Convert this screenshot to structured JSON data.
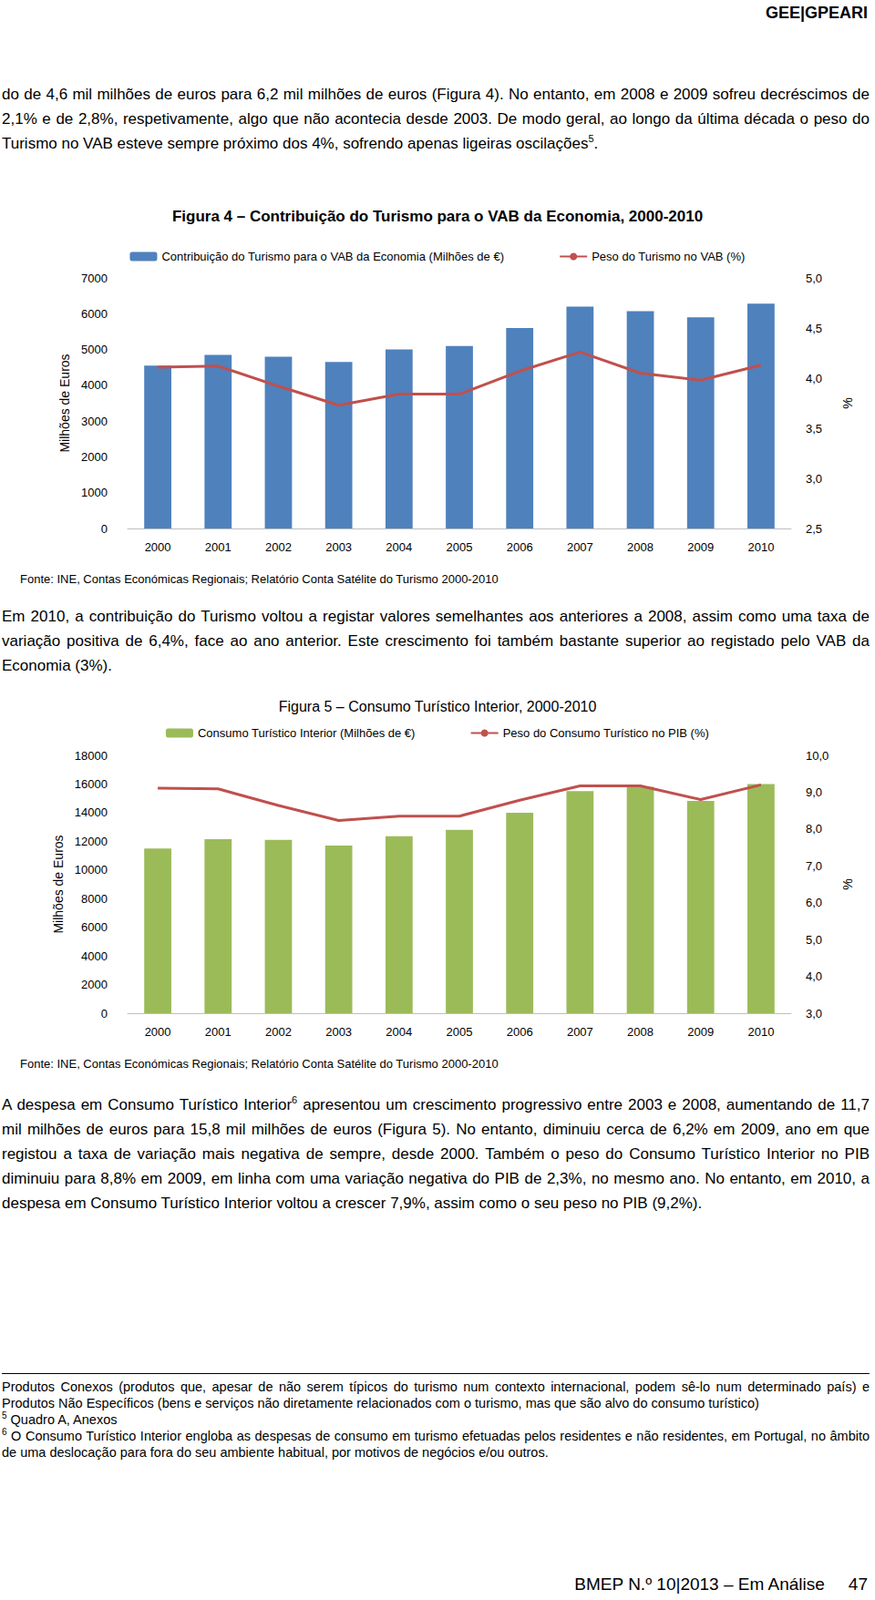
{
  "header": "GEE|GPEARI",
  "paragraphs": [
    [
      {
        "text": "do de 4,6 mil milhões de euros para 6,2 mil milhões de euros (Figura 4). No entanto, em 2008 e 2009 sofreu decréscimos de 2,1% e de 2,8%, respetivamente, algo que não acontecia desde 2003. De modo geral, ao longo da última década o peso do Turismo no VAB esteve sempre próximo dos 4%, sofrendo apenas ligeiras oscilações"
      },
      {
        "sup": "5"
      },
      {
        "text": "."
      }
    ],
    [
      {
        "text": "Em 2010, a contribuição do Turismo voltou a registar valores semelhantes aos anteriores a 2008, assim como uma taxa de variação positiva de 6,4%, face ao ano anterior. Este crescimento foi também bastante superior ao registado pelo VAB da Economia (3%)."
      }
    ],
    [
      {
        "text": "A despesa em Consumo Turístico Interior"
      },
      {
        "sup": "6"
      },
      {
        "text": " apresentou um crescimento progressivo entre 2003 e 2008, aumentando de 11,7 mil milhões de euros para 15,8 mil milhões de euros (Figura 5). No entanto, diminuiu cerca de 6,2% em 2009, ano em que registou a taxa de variação mais negativa de sempre, desde 2000. Também o peso do Consumo Turístico Interior no PIB diminuiu para 8,8% em 2009, em linha com uma variação negativa do PIB de 2,3%, no mesmo ano. No entanto, em 2010, a despesa em Consumo Turístico Interior voltou a crescer 7,9%, assim como o seu peso no PIB (9,2%)."
      }
    ]
  ],
  "chart_data": [
    {
      "type": "bar",
      "title": "Figura 4 – Contribuição do Turismo para o VAB da Economia, 2000-2010",
      "ylabel": "Milhões de Euros",
      "y2label": "%",
      "categories": [
        "2000",
        "2001",
        "2002",
        "2003",
        "2004",
        "2005",
        "2006",
        "2007",
        "2008",
        "2009",
        "2010"
      ],
      "series": [
        {
          "name": "Contribuição do Turismo para o VAB da Economia (Milhões de €)",
          "type": "bar",
          "color": "#4f81bd",
          "values": [
            4550,
            4850,
            4800,
            4650,
            5000,
            5100,
            5600,
            6200,
            6070,
            5900,
            6280
          ]
        },
        {
          "name": "Peso do Turismo no VAB (%)",
          "type": "line",
          "axis": "y2",
          "color": "#c0504d",
          "marker": "none",
          "line_style": "solid",
          "values": [
            4.11,
            4.12,
            3.92,
            3.73,
            3.84,
            3.84,
            4.07,
            4.26,
            4.05,
            3.98,
            4.13
          ]
        }
      ],
      "ylim": [
        0,
        7000
      ],
      "yticks": [
        0,
        1000,
        2000,
        3000,
        4000,
        5000,
        6000,
        7000
      ],
      "y2lim": [
        2.5,
        5.0
      ],
      "y2ticks": [
        {
          "value": 2.5,
          "label": "2,5"
        },
        {
          "value": 3.0,
          "label": "3,0"
        },
        {
          "value": 3.5,
          "label": "3,5"
        },
        {
          "value": 4.0,
          "label": "4,0"
        },
        {
          "value": 4.5,
          "label": "4,5"
        },
        {
          "value": 5.0,
          "label": "5,0"
        }
      ],
      "grid": false,
      "legend": "top"
    },
    {
      "type": "bar",
      "title": "Figura 5 – Consumo Turístico Interior, 2000-2010",
      "ylabel": "Milhões de Euros",
      "y2label": "%",
      "categories": [
        "2000",
        "2001",
        "2002",
        "2003",
        "2004",
        "2005",
        "2006",
        "2007",
        "2008",
        "2009",
        "2010"
      ],
      "series": [
        {
          "name": "Consumo Turístico Interior (Milhões de €)",
          "type": "bar",
          "color": "#9bbb59",
          "values": [
            11500,
            12150,
            12100,
            11700,
            12350,
            12800,
            14000,
            15500,
            15800,
            14820,
            15990
          ]
        },
        {
          "name": "Peso do Consumo Turístico no PIB (%)",
          "type": "line",
          "axis": "y2",
          "color": "#c0504d",
          "marker": "none",
          "line_style": "solid",
          "values": [
            9.11,
            9.09,
            8.64,
            8.23,
            8.35,
            8.35,
            8.78,
            9.17,
            9.17,
            8.8,
            9.2
          ]
        }
      ],
      "ylim": [
        0,
        18000
      ],
      "yticks": [
        0,
        2000,
        4000,
        6000,
        8000,
        10000,
        12000,
        14000,
        16000,
        18000
      ],
      "y2lim": [
        3.0,
        10.0
      ],
      "y2ticks": [
        {
          "value": 3.0,
          "label": "3,0"
        },
        {
          "value": 4.0,
          "label": "4,0"
        },
        {
          "value": 5.0,
          "label": "5,0"
        },
        {
          "value": 6.0,
          "label": "6,0"
        },
        {
          "value": 7.0,
          "label": "7,0"
        },
        {
          "value": 8.0,
          "label": "8,0"
        },
        {
          "value": 9.0,
          "label": "9,0"
        },
        {
          "value": 10.0,
          "label": "10,0"
        }
      ],
      "grid": false,
      "legend": "top"
    }
  ],
  "sources": [
    "Fonte: INE, Contas Económicas Regionais; Relatório Conta Satélite do Turismo 2000-2010",
    "Fonte: INE, Contas Económicas Regionais; Relatório Conta Satélite do Turismo 2000-2010"
  ],
  "footnotes": [
    {
      "text": "Produtos Conexos (produtos que, apesar de não serem típicos do turismo num contexto internacional, podem sê-lo num determinado país) e Produtos Não Específicos (bens e serviços não diretamente relacionados com o turismo, mas que são alvo do consumo turístico)"
    },
    {
      "mark": "5",
      "text": "Quadro A, Anexos"
    },
    {
      "mark": "6",
      "text": "O Consumo Turístico Interior engloba as despesas de consumo em turismo efetuadas pelos residentes e não residentes, em Portugal, no âmbito de uma deslocação para fora do seu ambiente habitual, por motivos de negócios e/ou outros."
    }
  ],
  "footer": {
    "title": "BMEP N.º 10|2013 – Em Análise",
    "page": 47
  }
}
